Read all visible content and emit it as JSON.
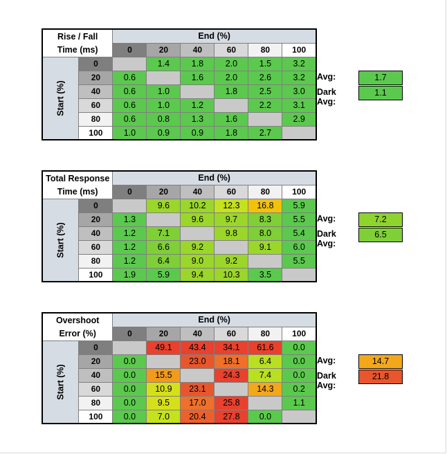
{
  "chart_data": [
    {
      "type": "table",
      "title_line1": "Rise / Fall",
      "title_line2": "Time (ms)",
      "xlabel": "End (%)",
      "ylabel": "Start (%)",
      "columns": [
        "0",
        "20",
        "40",
        "60",
        "80",
        "100"
      ],
      "rows": [
        "0",
        "20",
        "40",
        "60",
        "80",
        "100"
      ],
      "values": [
        [
          "",
          "1.4",
          "1.8",
          "2.0",
          "1.5",
          "3.2"
        ],
        [
          "0.6",
          "",
          "1.6",
          "2.0",
          "2.6",
          "3.2"
        ],
        [
          "0.6",
          "1.0",
          "",
          "1.8",
          "2.5",
          "3.0"
        ],
        [
          "0.6",
          "1.0",
          "1.2",
          "",
          "2.2",
          "3.1"
        ],
        [
          "0.6",
          "0.8",
          "1.3",
          "1.6",
          "",
          "2.9"
        ],
        [
          "1.0",
          "0.9",
          "0.9",
          "1.8",
          "2.7",
          ""
        ]
      ],
      "colors": [
        [
          "#c9c9c9",
          "#5bc94d",
          "#5bc94d",
          "#5bc94d",
          "#5bc94d",
          "#5bc94d"
        ],
        [
          "#5bc94d",
          "#c9c9c9",
          "#5bc94d",
          "#5bc94d",
          "#5bc94d",
          "#5bc94d"
        ],
        [
          "#5bc94d",
          "#5bc94d",
          "#c9c9c9",
          "#5bc94d",
          "#5bc94d",
          "#5bc94d"
        ],
        [
          "#5bc94d",
          "#5bc94d",
          "#5bc94d",
          "#c9c9c9",
          "#5bc94d",
          "#5bc94d"
        ],
        [
          "#5bc94d",
          "#5bc94d",
          "#5bc94d",
          "#5bc94d",
          "#c9c9c9",
          "#5bc94d"
        ],
        [
          "#5bc94d",
          "#5bc94d",
          "#5bc94d",
          "#5bc94d",
          "#5bc94d",
          "#c9c9c9"
        ]
      ],
      "avg_label": "Avg:",
      "avg_value": "1.7",
      "avg_color": "#5bc94d",
      "dark_avg_label": "Dark Avg:",
      "dark_avg_value": "1.1",
      "dark_avg_color": "#5bc94d"
    },
    {
      "type": "table",
      "title_line1": "Total Response",
      "title_line2": "Time (ms)",
      "xlabel": "End (%)",
      "ylabel": "Start (%)",
      "columns": [
        "0",
        "20",
        "40",
        "60",
        "80",
        "100"
      ],
      "rows": [
        "0",
        "20",
        "40",
        "60",
        "80",
        "100"
      ],
      "values": [
        [
          "",
          "9.6",
          "10.2",
          "12.3",
          "16.8",
          "5.9"
        ],
        [
          "1.3",
          "",
          "9.6",
          "9.7",
          "8.3",
          "5.5"
        ],
        [
          "1.2",
          "7.1",
          "",
          "9.8",
          "8.0",
          "5.4"
        ],
        [
          "1.2",
          "6.6",
          "9.2",
          "",
          "9.1",
          "6.0"
        ],
        [
          "1.2",
          "6.4",
          "9.0",
          "9.2",
          "",
          "5.5"
        ],
        [
          "1.9",
          "5.9",
          "9.4",
          "10.3",
          "3.5",
          ""
        ]
      ],
      "colors": [
        [
          "#c9c9c9",
          "#9bd62a",
          "#9bd62a",
          "#c4e21d",
          "#f2c20a",
          "#5bc94d"
        ],
        [
          "#5bc94d",
          "#c9c9c9",
          "#9bd62a",
          "#9bd62a",
          "#7fcf37",
          "#5bc94d"
        ],
        [
          "#5bc94d",
          "#7fcf37",
          "#c9c9c9",
          "#9bd62a",
          "#7fcf37",
          "#5bc94d"
        ],
        [
          "#5bc94d",
          "#7fcf37",
          "#9bd62a",
          "#c9c9c9",
          "#9bd62a",
          "#5bc94d"
        ],
        [
          "#5bc94d",
          "#7fcf37",
          "#9bd62a",
          "#9bd62a",
          "#c9c9c9",
          "#5bc94d"
        ],
        [
          "#5bc94d",
          "#5bc94d",
          "#9bd62a",
          "#9bd62a",
          "#5bc94d",
          "#c9c9c9"
        ]
      ],
      "avg_label": "Avg:",
      "avg_value": "7.2",
      "avg_color": "#8fd32f",
      "dark_avg_label": "Dark Avg:",
      "dark_avg_value": "6.5",
      "dark_avg_color": "#7fcf37"
    },
    {
      "type": "table",
      "title_line1": "Overshoot",
      "title_line2": "Error (%)",
      "xlabel": "End (%)",
      "ylabel": "Start (%)",
      "columns": [
        "0",
        "20",
        "40",
        "60",
        "80",
        "100"
      ],
      "rows": [
        "0",
        "20",
        "40",
        "60",
        "80",
        "100"
      ],
      "values": [
        [
          "",
          "49.1",
          "43.4",
          "34.1",
          "61.6",
          "0.0"
        ],
        [
          "0.0",
          "",
          "23.0",
          "18.1",
          "6.4",
          "0.0"
        ],
        [
          "0.0",
          "15.5",
          "",
          "24.3",
          "7.4",
          "0.0"
        ],
        [
          "0.0",
          "10.9",
          "23.1",
          "",
          "14.3",
          "0.2"
        ],
        [
          "0.0",
          "9.5",
          "17.0",
          "25.8",
          "",
          "1.1"
        ],
        [
          "0.0",
          "7.0",
          "20.4",
          "27.8",
          "0.0",
          ""
        ]
      ],
      "colors": [
        [
          "#c9c9c9",
          "#e8412d",
          "#e8412d",
          "#e8412d",
          "#e8412d",
          "#5bc94d"
        ],
        [
          "#5bc94d",
          "#c9c9c9",
          "#e8562d",
          "#ee702a",
          "#b8df22",
          "#5bc94d"
        ],
        [
          "#5bc94d",
          "#f29a1c",
          "#c9c9c9",
          "#e8412d",
          "#b8df22",
          "#5bc94d"
        ],
        [
          "#5bc94d",
          "#d6e01a",
          "#e8562d",
          "#c9c9c9",
          "#f2a81a",
          "#5bc94d"
        ],
        [
          "#5bc94d",
          "#d6e01a",
          "#ee702a",
          "#e8412d",
          "#c9c9c9",
          "#5bc94d"
        ],
        [
          "#5bc94d",
          "#c4e21d",
          "#ee602a",
          "#e8412d",
          "#5bc94d",
          "#c9c9c9"
        ]
      ],
      "avg_label": "Avg:",
      "avg_value": "14.7",
      "avg_color": "#f2a81a",
      "dark_avg_label": "Dark Avg:",
      "dark_avg_value": "21.8",
      "dark_avg_color": "#e8562d"
    }
  ],
  "style": {
    "header_fill": "#d6dce4",
    "col_header_fills": [
      "#7f7f7f",
      "#a6a6a6",
      "#bfbfbf",
      "#d9d9d9",
      "#f2f2f2",
      "#ffffff"
    ]
  }
}
